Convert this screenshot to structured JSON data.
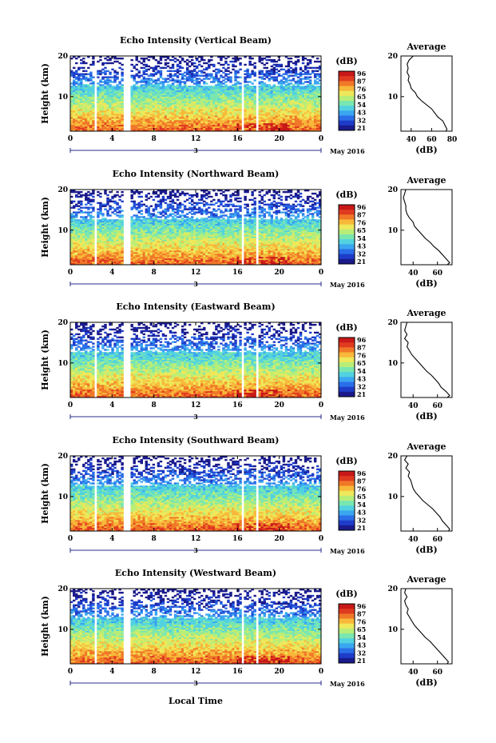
{
  "chart_data": {
    "type": "heatmap",
    "panels": [
      {
        "title": "Echo Intensity (Vertical Beam)",
        "avg_ticks": [
          "40",
          "60",
          "80"
        ],
        "avg_xlim": [
          30,
          80
        ],
        "avg_profile": [
          [
            20,
            42
          ],
          [
            19,
            38
          ],
          [
            18,
            36
          ],
          [
            17,
            37
          ],
          [
            16,
            36
          ],
          [
            15,
            38
          ],
          [
            14,
            37
          ],
          [
            13,
            39
          ],
          [
            12,
            40
          ],
          [
            11,
            44
          ],
          [
            10,
            46
          ],
          [
            9,
            50
          ],
          [
            8,
            55
          ],
          [
            7,
            60
          ],
          [
            6,
            63
          ],
          [
            5,
            66
          ],
          [
            4,
            71
          ],
          [
            3,
            73
          ],
          [
            2,
            75
          ],
          [
            1.5,
            74
          ]
        ]
      },
      {
        "title": "Echo Intensity (Northward Beam)",
        "avg_ticks": [
          "40",
          "60"
        ],
        "avg_xlim": [
          30,
          72
        ],
        "avg_profile": [
          [
            20,
            34
          ],
          [
            19,
            33
          ],
          [
            18,
            32
          ],
          [
            17,
            33
          ],
          [
            16,
            34
          ],
          [
            15,
            34
          ],
          [
            14,
            35
          ],
          [
            13,
            37
          ],
          [
            12,
            40
          ],
          [
            11,
            41
          ],
          [
            10,
            44
          ],
          [
            9,
            47
          ],
          [
            8,
            50
          ],
          [
            7,
            54
          ],
          [
            6,
            57
          ],
          [
            5,
            61
          ],
          [
            4,
            64
          ],
          [
            3,
            67
          ],
          [
            2,
            70
          ],
          [
            1.5,
            68
          ]
        ]
      },
      {
        "title": "Echo Intensity (Eastward Beam)",
        "avg_ticks": [
          "40",
          "60"
        ],
        "avg_xlim": [
          30,
          72
        ],
        "avg_profile": [
          [
            20,
            35
          ],
          [
            19,
            34
          ],
          [
            18,
            33
          ],
          [
            17,
            35
          ],
          [
            16,
            33
          ],
          [
            15,
            36
          ],
          [
            14,
            35
          ],
          [
            13,
            37
          ],
          [
            12,
            39
          ],
          [
            11,
            42
          ],
          [
            10,
            45
          ],
          [
            9,
            48
          ],
          [
            8,
            51
          ],
          [
            7,
            55
          ],
          [
            6,
            58
          ],
          [
            5,
            61
          ],
          [
            4,
            63
          ],
          [
            3,
            67
          ],
          [
            2,
            70
          ],
          [
            1.5,
            68
          ]
        ]
      },
      {
        "title": "Echo Intensity (Southward Beam)",
        "avg_ticks": [
          "40",
          "60"
        ],
        "avg_xlim": [
          30,
          72
        ],
        "avg_profile": [
          [
            20,
            35
          ],
          [
            19,
            33
          ],
          [
            18,
            36
          ],
          [
            17,
            34
          ],
          [
            16,
            37
          ],
          [
            15,
            36
          ],
          [
            14,
            38
          ],
          [
            13,
            39
          ],
          [
            12,
            40
          ],
          [
            11,
            42
          ],
          [
            10,
            45
          ],
          [
            9,
            48
          ],
          [
            8,
            52
          ],
          [
            7,
            56
          ],
          [
            6,
            59
          ],
          [
            5,
            62
          ],
          [
            4,
            64
          ],
          [
            3,
            67
          ],
          [
            2,
            70
          ],
          [
            1.5,
            69
          ]
        ]
      },
      {
        "title": "Echo Intensity (Westward Beam)",
        "avg_ticks": [
          "40",
          "60"
        ],
        "avg_xlim": [
          30,
          72
        ],
        "avg_profile": [
          [
            20,
            34
          ],
          [
            19,
            33
          ],
          [
            18,
            35
          ],
          [
            17,
            33
          ],
          [
            16,
            34
          ],
          [
            15,
            36
          ],
          [
            14,
            35
          ],
          [
            13,
            37
          ],
          [
            12,
            39
          ],
          [
            11,
            41
          ],
          [
            10,
            44
          ],
          [
            9,
            47
          ],
          [
            8,
            50
          ],
          [
            7,
            54
          ],
          [
            6,
            57
          ],
          [
            5,
            60
          ],
          [
            4,
            63
          ],
          [
            3,
            66
          ],
          [
            2,
            69
          ],
          [
            1.5,
            68
          ]
        ]
      }
    ],
    "x_ticks": [
      "0",
      "4",
      "8",
      "12",
      "16",
      "20",
      "0"
    ],
    "xlim": [
      0,
      24
    ],
    "y_ticks": [
      "20",
      "10"
    ],
    "ylim": [
      1.5,
      20
    ],
    "ylabel": "Height (km)",
    "xlabel": "Local Time",
    "date_marker": "3",
    "date_label": "May 2016",
    "colorbar": {
      "unit": "(dB)",
      "ticks": [
        "96",
        "87",
        "76",
        "65",
        "54",
        "43",
        "32",
        "21"
      ],
      "colors": [
        "#1a1a8c",
        "#1e3cc8",
        "#2a6ee8",
        "#3aa6f0",
        "#52d2e0",
        "#7ae6b0",
        "#b8ee78",
        "#eee85a",
        "#f8b83a",
        "#f07828",
        "#e03a20",
        "#c81818"
      ]
    },
    "avg_title": "Average",
    "avg_xlabel": "(dB)",
    "avg_yticks": [
      "20",
      "10"
    ],
    "data_gaps_hours": [
      [
        2.3,
        2.6
      ],
      [
        5.0,
        5.8
      ],
      [
        16.3,
        16.6
      ],
      [
        17.7,
        18.0
      ]
    ]
  }
}
